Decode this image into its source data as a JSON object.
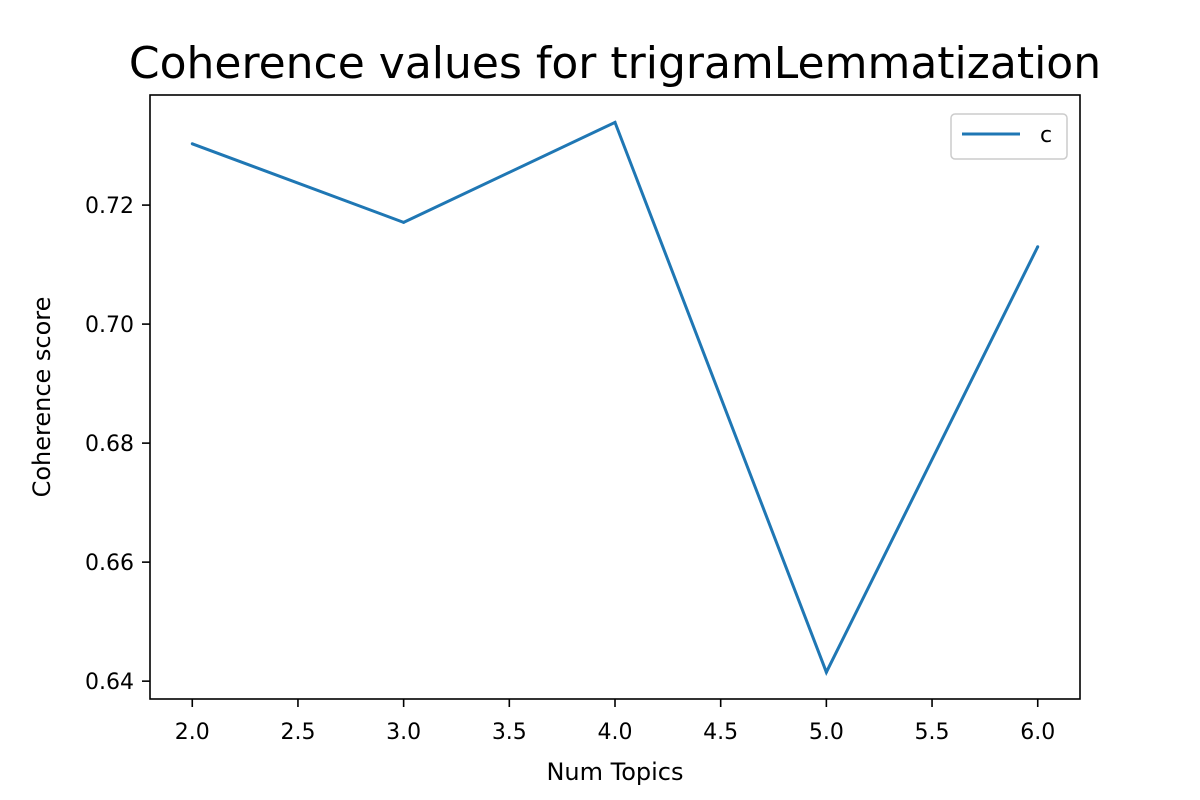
{
  "chart_data": {
    "type": "line",
    "title": "Coherence values for trigramLemmatization",
    "xlabel": "Num Topics",
    "ylabel": "Coherence score",
    "xlim": [
      1.8,
      6.2
    ],
    "ylim": [
      0.637,
      0.7385
    ],
    "x_ticks": [
      2.0,
      2.5,
      3.0,
      3.5,
      4.0,
      4.5,
      5.0,
      5.5,
      6.0
    ],
    "x_tick_labels": [
      "2.0",
      "2.5",
      "3.0",
      "3.5",
      "4.0",
      "4.5",
      "5.0",
      "5.5",
      "6.0"
    ],
    "y_ticks": [
      0.64,
      0.66,
      0.68,
      0.7,
      0.72
    ],
    "y_tick_labels": [
      "0.64",
      "0.66",
      "0.68",
      "0.70",
      "0.72"
    ],
    "grid": false,
    "legend_position": "top-right",
    "series": [
      {
        "name": "c",
        "color": "#1f77b4",
        "x": [
          2,
          3,
          4,
          5,
          6
        ],
        "y": [
          0.7303,
          0.7171,
          0.7339,
          0.6415,
          0.713
        ]
      }
    ]
  }
}
